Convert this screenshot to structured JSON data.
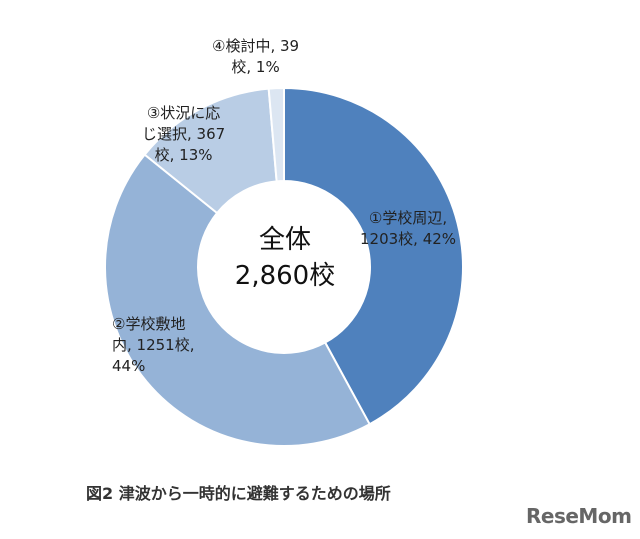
{
  "chart_data": {
    "type": "pie",
    "variant": "donut",
    "center_label": {
      "line1": "全体",
      "line2": "2,860校"
    },
    "categories": [
      "①学校周辺",
      "②学校敷地内",
      "③状況に応じ選択",
      "④検討中"
    ],
    "values": [
      1203,
      1251,
      367,
      39
    ],
    "percents": [
      42,
      44,
      13,
      1
    ],
    "colors": [
      "#4f81bd",
      "#95b3d7",
      "#b9cde5",
      "#dce6f2"
    ],
    "data_labels": [
      "①学校周辺,\n1203校, 42%",
      "②学校敷地\n内, 1251校,\n44%",
      "③状況に応\nじ選択, 367\n校, 13%",
      "④検討中, 39\n校, 1%"
    ],
    "start_angle": "top",
    "direction": "clockwise"
  },
  "caption": "図2  津波から一時的に避難するための場所",
  "logo": "ReseMom"
}
